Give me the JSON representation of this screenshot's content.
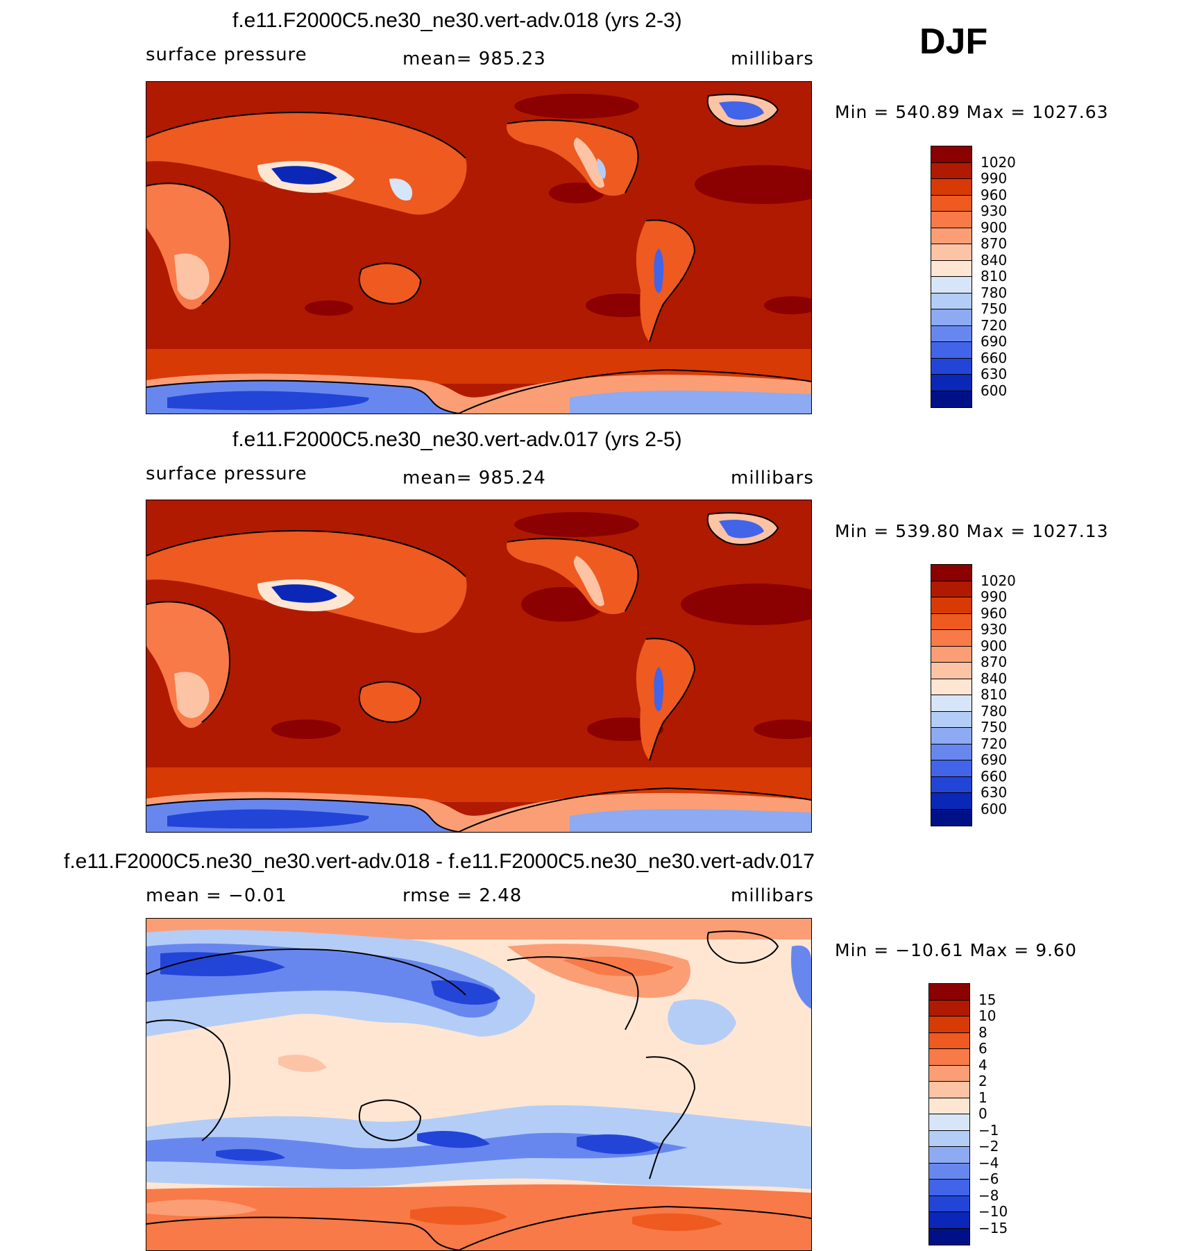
{
  "season": "DJF",
  "panels": [
    {
      "title": "f.e11.F2000C5.ne30_ne30.vert-adv.018 (yrs 2-3)",
      "left_label": "surface  pressure",
      "center_label": "mean=  985.23",
      "units": "millibars",
      "minmax": "Min  =  540.89  Max  =  1027.63"
    },
    {
      "title": "f.e11.F2000C5.ne30_ne30.vert-adv.017 (yrs 2-5)",
      "left_label": "surface  pressure",
      "center_label": "mean=  985.24",
      "units": "millibars",
      "minmax": "Min  =  539.80  Max  =  1027.13"
    },
    {
      "title": "f.e11.F2000C5.ne30_ne30.vert-adv.018 - f.e11.F2000C5.ne30_ne30.vert-adv.017",
      "left_label": "mean  =    −0.01",
      "center_label": "rmse  =     2.48",
      "units": "millibars",
      "minmax": "Min  =  −10.61  Max  =     9.60"
    }
  ],
  "colorbars": {
    "pressure": {
      "labels": [
        "1020",
        "990",
        "960",
        "930",
        "900",
        "870",
        "840",
        "810",
        "780",
        "750",
        "720",
        "690",
        "660",
        "630",
        "600"
      ],
      "colors": [
        "#8b0000",
        "#b01a00",
        "#d83a05",
        "#ee5a20",
        "#f77a48",
        "#fb9e75",
        "#fdc3a5",
        "#fee6d3",
        "#d6e6f8",
        "#b3cdf7",
        "#8daaf2",
        "#6887ee",
        "#4164e8",
        "#2245d8",
        "#0a27b8",
        "#001188"
      ]
    },
    "difference": {
      "labels": [
        "15",
        "10",
        "8",
        "6",
        "4",
        "2",
        "1",
        "0",
        "−1",
        "−2",
        "−4",
        "−6",
        "−8",
        "−10",
        "−15"
      ],
      "colors": [
        "#8b0000",
        "#b01a00",
        "#d83a05",
        "#ee5a20",
        "#f77a48",
        "#fb9e75",
        "#fdc3a5",
        "#fee6d3",
        "#d6e6f8",
        "#b3cdf7",
        "#8daaf2",
        "#6887ee",
        "#4164e8",
        "#2245d8",
        "#0a27b8",
        "#001188"
      ]
    }
  }
}
